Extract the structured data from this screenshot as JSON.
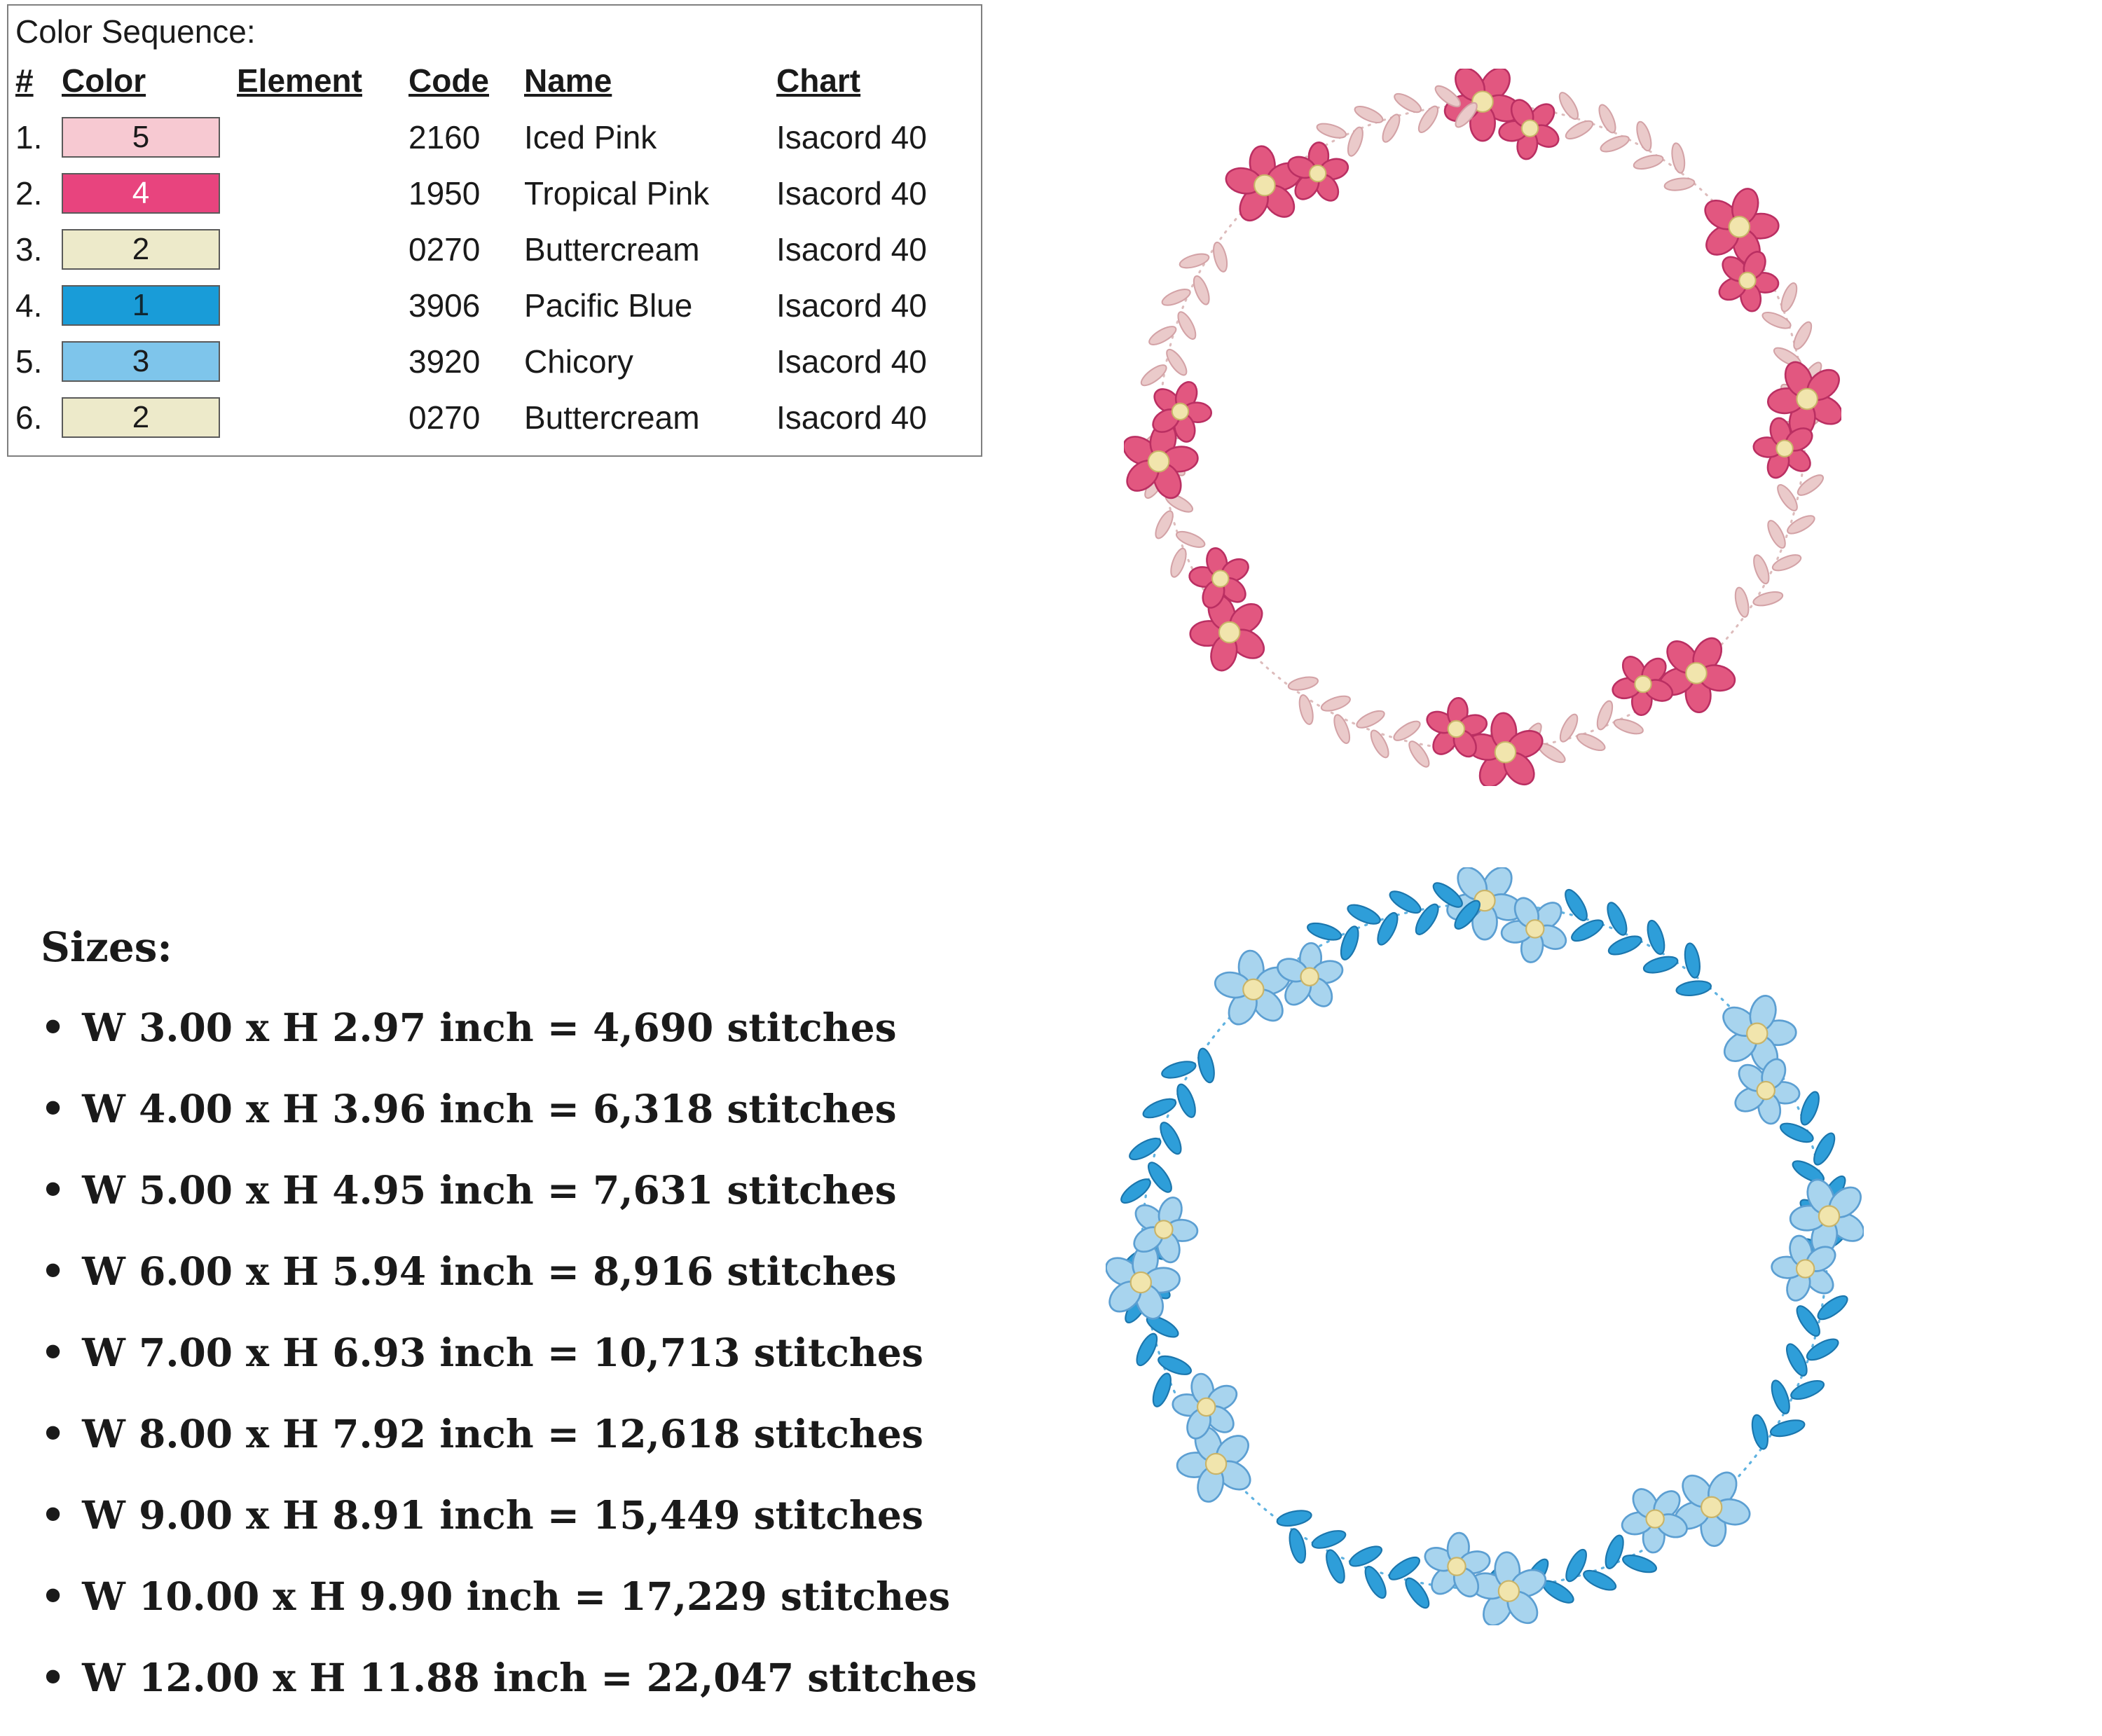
{
  "color_sequence": {
    "title": "Color Sequence:",
    "headers": [
      "#",
      "Color",
      "Element",
      "Code",
      "Name",
      "Chart"
    ],
    "rows": [
      {
        "index": "1.",
        "thread_number": "5",
        "swatch_color": "#f7c9d2",
        "swatch_text_color": "#1a1a1a",
        "element": "",
        "code": "2160",
        "name": "Iced Pink",
        "chart": "Isacord 40"
      },
      {
        "index": "2.",
        "thread_number": "4",
        "swatch_color": "#e8447e",
        "swatch_text_color": "#ffffff",
        "element": "",
        "code": "1950",
        "name": "Tropical Pink",
        "chart": "Isacord 40"
      },
      {
        "index": "3.",
        "thread_number": "2",
        "swatch_color": "#edeaca",
        "swatch_text_color": "#1a1a1a",
        "element": "",
        "code": "0270",
        "name": "Buttercream",
        "chart": "Isacord 40"
      },
      {
        "index": "4.",
        "thread_number": "1",
        "swatch_color": "#199cd8",
        "swatch_text_color": "#102832",
        "element": "",
        "code": "3906",
        "name": "Pacific Blue",
        "chart": "Isacord 40"
      },
      {
        "index": "5.",
        "thread_number": "3",
        "swatch_color": "#7ec5eb",
        "swatch_text_color": "#1a1a1a",
        "element": "",
        "code": "3920",
        "name": "Chicory",
        "chart": "Isacord 40"
      },
      {
        "index": "6.",
        "thread_number": "2",
        "swatch_color": "#edeaca",
        "swatch_text_color": "#1a1a1a",
        "element": "",
        "code": "0270",
        "name": "Buttercream",
        "chart": "Isacord 40"
      }
    ]
  },
  "sizes": {
    "title": "Sizes:",
    "bullet": "•",
    "items": [
      "W 3.00 x H 2.97 inch = 4,690 stitches",
      "W 4.00 x H 3.96 inch = 6,318 stitches",
      "W 5.00 x H 4.95 inch = 7,631 stitches",
      "W 6.00 x H 5.94 inch = 8,916 stitches",
      "W 7.00 x H 6.93 inch = 10,713 stitches",
      "W 8.00 x H 7.92 inch = 12,618 stitches",
      "W 9.00 x H 8.91 inch = 15,449 stitches",
      "W 10.00 x H 9.90 inch = 17,229 stitches",
      "W 12.00 x H 11.88 inch = 22,047 stitches"
    ]
  },
  "wreaths": [
    {
      "id": "pink",
      "label": "pink floral wreath",
      "petal": "#e25780",
      "petal_stroke": "#ba2f62",
      "center": "#f1e5ad",
      "center_stroke": "#c9b469",
      "leaf": "#eacaca",
      "leaf_stroke": "#d3a2a6",
      "stem": "#ddbcbc"
    },
    {
      "id": "blue",
      "label": "blue floral wreath",
      "petal": "#a8d4ee",
      "petal_stroke": "#5c9fd2",
      "center": "#f1e5ad",
      "center_stroke": "#c9b469",
      "leaf": "#2e9ed9",
      "leaf_stroke": "#1b76ad",
      "stem": "#5fb2e0"
    }
  ]
}
